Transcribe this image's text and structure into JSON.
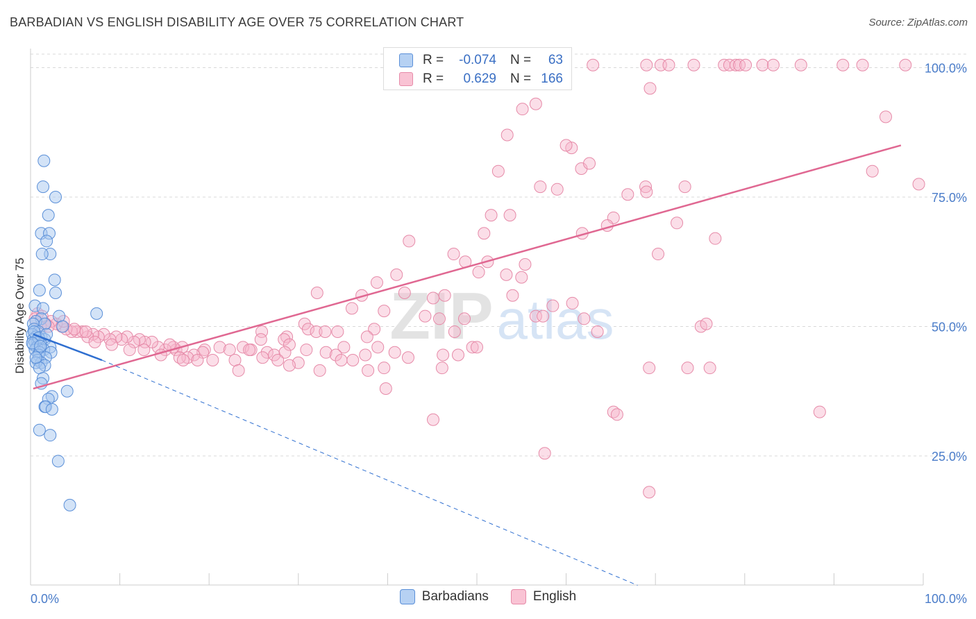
{
  "header": {
    "title": "BARBADIAN VS ENGLISH DISABILITY AGE OVER 75 CORRELATION CHART",
    "source": "Source: ZipAtlas.com"
  },
  "legend_top": {
    "rows": [
      {
        "r_label": "R =",
        "r_value": "-0.074",
        "n_label": "N =",
        "n_value": "63"
      },
      {
        "r_label": "R =",
        "r_value": "0.629",
        "n_label": "N =",
        "n_value": "166"
      }
    ]
  },
  "legend_bottom": [
    "Barbadians",
    "English"
  ],
  "watermark": {
    "zip": "ZIP",
    "atlas": "atlas"
  },
  "colors": {
    "barbadian_fill": "#a8c8f0",
    "barbadian_stroke": "#5a8fd8",
    "barbadian_line": "#2f6fd0",
    "english_fill": "#f7b6cb",
    "english_stroke": "#e68aa8",
    "english_line": "#e06892",
    "grid": "#d8d8d8",
    "tick_text": "#4a7cc9"
  },
  "chart_data": {
    "type": "scatter",
    "title": "BARBADIAN VS ENGLISH DISABILITY AGE OVER 75 CORRELATION CHART",
    "xlabel": "",
    "ylabel": "Disability Age Over 75",
    "xlim": [
      0,
      100
    ],
    "ylim": [
      0,
      105
    ],
    "x_tick_labels": [
      "0.0%",
      "100.0%"
    ],
    "y_ticks": [
      25,
      50,
      75,
      100
    ],
    "y_tick_labels": [
      "25.0%",
      "50.0%",
      "75.0%",
      "100.0%"
    ],
    "grid": true,
    "legend_position": "bottom",
    "series": [
      {
        "name": "Barbadians",
        "R": -0.074,
        "N": 63,
        "trend": {
          "x0": 0.3,
          "y0": 48.5,
          "x1": 8.0,
          "y1": 43.5,
          "dash_x1": 68.0,
          "dash_y1": 0
        },
        "points": [
          [
            1.5,
            82
          ],
          [
            1.4,
            77
          ],
          [
            2.8,
            75
          ],
          [
            2.0,
            71.5
          ],
          [
            1.2,
            68
          ],
          [
            2.1,
            68
          ],
          [
            1.8,
            66.5
          ],
          [
            2.2,
            64
          ],
          [
            1.3,
            64
          ],
          [
            2.7,
            59
          ],
          [
            1.0,
            57
          ],
          [
            2.8,
            56.5
          ],
          [
            0.5,
            54
          ],
          [
            1.4,
            53.5
          ],
          [
            7.4,
            52.5
          ],
          [
            3.2,
            52
          ],
          [
            1.2,
            51.5
          ],
          [
            0.6,
            51
          ],
          [
            0.3,
            50.5
          ],
          [
            1.6,
            50.5
          ],
          [
            3.6,
            50
          ],
          [
            0.4,
            49.5
          ],
          [
            0.9,
            49
          ],
          [
            0.2,
            48.5
          ],
          [
            1.2,
            48
          ],
          [
            0.6,
            48
          ],
          [
            0.3,
            47.5
          ],
          [
            1.6,
            47.5
          ],
          [
            0.5,
            47
          ],
          [
            0.8,
            47
          ],
          [
            0.3,
            46.5
          ],
          [
            1.2,
            46.5
          ],
          [
            0.7,
            46
          ],
          [
            2.2,
            46
          ],
          [
            0.5,
            45.5
          ],
          [
            1.5,
            45.5
          ],
          [
            1.0,
            45
          ],
          [
            2.3,
            45
          ],
          [
            0.9,
            44.5
          ],
          [
            1.7,
            44
          ],
          [
            0.8,
            43.5
          ],
          [
            1.2,
            43
          ],
          [
            0.6,
            43
          ],
          [
            1.6,
            42.5
          ],
          [
            1.0,
            42
          ],
          [
            1.4,
            40
          ],
          [
            1.2,
            39
          ],
          [
            4.1,
            37.5
          ],
          [
            2.4,
            36.5
          ],
          [
            2.0,
            36
          ],
          [
            1.6,
            34.5
          ],
          [
            1.7,
            34.5
          ],
          [
            2.4,
            34
          ],
          [
            1.0,
            30
          ],
          [
            2.2,
            29
          ],
          [
            3.1,
            24
          ],
          [
            4.4,
            15.5
          ],
          [
            0.4,
            49
          ],
          [
            0.9,
            47.8
          ],
          [
            0.2,
            46.8
          ],
          [
            1.8,
            48.5
          ],
          [
            0.6,
            44
          ],
          [
            1.1,
            46.2
          ]
        ]
      },
      {
        "name": "English",
        "R": 0.629,
        "N": 166,
        "trend": {
          "x0": 0.3,
          "y0": 38,
          "x1": 97.5,
          "y1": 85
        },
        "points": [
          [
            63.0,
            100.5
          ],
          [
            69.0,
            100.5
          ],
          [
            70.6,
            100.5
          ],
          [
            71.5,
            100.5
          ],
          [
            74.3,
            100.5
          ],
          [
            77.7,
            100.5
          ],
          [
            78.3,
            100.5
          ],
          [
            79.0,
            100.5
          ],
          [
            79.4,
            100.5
          ],
          [
            80.1,
            100.5
          ],
          [
            82.0,
            100.5
          ],
          [
            83.2,
            100.5
          ],
          [
            86.3,
            100.5
          ],
          [
            91.0,
            100.5
          ],
          [
            93.2,
            100.5
          ],
          [
            98.0,
            100.5
          ],
          [
            69.4,
            96
          ],
          [
            55.1,
            92
          ],
          [
            56.6,
            93
          ],
          [
            95.8,
            90.5
          ],
          [
            53.4,
            87
          ],
          [
            60.6,
            84.5
          ],
          [
            60.0,
            85
          ],
          [
            61.7,
            80.5
          ],
          [
            62.6,
            81.5
          ],
          [
            52.4,
            80
          ],
          [
            94.3,
            80
          ],
          [
            99.5,
            77.5
          ],
          [
            57.1,
            77
          ],
          [
            59.0,
            76.5
          ],
          [
            66.9,
            75.5
          ],
          [
            68.9,
            77
          ],
          [
            69.0,
            76
          ],
          [
            73.3,
            77
          ],
          [
            51.6,
            71.5
          ],
          [
            53.7,
            71.5
          ],
          [
            65.3,
            71
          ],
          [
            64.6,
            69.5
          ],
          [
            72.4,
            70
          ],
          [
            50.8,
            68
          ],
          [
            61.8,
            68
          ],
          [
            76.7,
            67
          ],
          [
            42.4,
            66.5
          ],
          [
            47.4,
            64
          ],
          [
            70.3,
            64
          ],
          [
            48.7,
            62.5
          ],
          [
            51.2,
            62.5
          ],
          [
            50.2,
            60.5
          ],
          [
            53.3,
            60
          ],
          [
            55.4,
            62
          ],
          [
            55.0,
            59.5
          ],
          [
            41.0,
            60
          ],
          [
            38.8,
            58.5
          ],
          [
            41.9,
            56.5
          ],
          [
            32.1,
            56.5
          ],
          [
            37.1,
            56
          ],
          [
            46.4,
            56
          ],
          [
            45.1,
            55.5
          ],
          [
            54.0,
            56
          ],
          [
            58.5,
            54
          ],
          [
            60.7,
            54.5
          ],
          [
            36.0,
            53.5
          ],
          [
            39.6,
            53
          ],
          [
            45.8,
            51.5
          ],
          [
            44.2,
            52
          ],
          [
            48.6,
            51.5
          ],
          [
            56.6,
            52
          ],
          [
            62.0,
            51.5
          ],
          [
            57.4,
            52
          ],
          [
            75.1,
            50
          ],
          [
            75.7,
            50.5
          ],
          [
            30.7,
            50.5
          ],
          [
            38.5,
            49.5
          ],
          [
            47.5,
            49
          ],
          [
            37.7,
            48
          ],
          [
            63.5,
            49
          ],
          [
            31.1,
            49.5
          ],
          [
            32.0,
            49
          ],
          [
            33.0,
            49
          ],
          [
            25.9,
            49
          ],
          [
            34.4,
            49
          ],
          [
            28.7,
            48
          ],
          [
            28.4,
            47.5
          ],
          [
            25.8,
            47.5
          ],
          [
            29.0,
            46.5
          ],
          [
            35.1,
            46
          ],
          [
            38.9,
            46
          ],
          [
            49.5,
            46
          ],
          [
            50.0,
            46
          ],
          [
            19.5,
            45.5
          ],
          [
            21.2,
            46
          ],
          [
            22.3,
            45.5
          ],
          [
            23.8,
            46
          ],
          [
            19.3,
            45
          ],
          [
            24.7,
            45.5
          ],
          [
            26.5,
            45
          ],
          [
            27.3,
            44.5
          ],
          [
            28.5,
            45
          ],
          [
            30.9,
            45.5
          ],
          [
            26.0,
            44
          ],
          [
            27.7,
            43.5
          ],
          [
            33.1,
            45
          ],
          [
            34.2,
            44.5
          ],
          [
            34.8,
            43.5
          ],
          [
            37.5,
            44.5
          ],
          [
            40.8,
            45
          ],
          [
            42.3,
            44
          ],
          [
            46.2,
            44.5
          ],
          [
            18.3,
            44.5
          ],
          [
            17.6,
            44
          ],
          [
            16.3,
            45.5
          ],
          [
            17.0,
            46
          ],
          [
            16.0,
            46
          ],
          [
            15.1,
            45.5
          ],
          [
            14.3,
            46
          ],
          [
            13.6,
            47
          ],
          [
            12.8,
            47
          ],
          [
            12.2,
            47.5
          ],
          [
            11.6,
            47
          ],
          [
            10.8,
            48
          ],
          [
            10.2,
            47.5
          ],
          [
            9.6,
            48
          ],
          [
            8.9,
            47.5
          ],
          [
            8.2,
            48.5
          ],
          [
            7.6,
            48
          ],
          [
            7.0,
            48.5
          ],
          [
            6.4,
            48
          ],
          [
            5.8,
            49
          ],
          [
            5.2,
            49
          ],
          [
            4.6,
            49
          ],
          [
            4.0,
            49.5
          ],
          [
            3.5,
            50
          ],
          [
            2.9,
            50.5
          ],
          [
            2.3,
            51
          ],
          [
            1.7,
            50.5
          ],
          [
            1.1,
            50
          ],
          [
            0.8,
            52.5
          ],
          [
            0.5,
            51.5
          ],
          [
            1.3,
            52
          ],
          [
            2.0,
            50
          ],
          [
            3.7,
            51
          ],
          [
            4.9,
            49.5
          ],
          [
            6.2,
            49
          ],
          [
            7.2,
            47
          ],
          [
            9.1,
            46.5
          ],
          [
            11.1,
            45.5
          ],
          [
            12.7,
            45.5
          ],
          [
            14.6,
            44.5
          ],
          [
            16.7,
            44
          ],
          [
            17.1,
            43.5
          ],
          [
            18.7,
            43.5
          ],
          [
            20.4,
            43.5
          ],
          [
            22.9,
            43.5
          ],
          [
            30.0,
            43
          ],
          [
            36.1,
            43.5
          ],
          [
            39.6,
            42
          ],
          [
            73.6,
            42
          ],
          [
            69.3,
            42
          ],
          [
            76.1,
            42
          ],
          [
            47.9,
            44.5
          ],
          [
            32.4,
            41.5
          ],
          [
            37.8,
            41.5
          ],
          [
            29.0,
            42.5
          ],
          [
            23.3,
            41.5
          ],
          [
            39.8,
            38
          ],
          [
            46.1,
            42
          ],
          [
            24.5,
            45.5
          ],
          [
            15.6,
            46.5
          ],
          [
            88.4,
            33.5
          ],
          [
            65.3,
            33.5
          ],
          [
            65.7,
            33
          ],
          [
            45.1,
            32
          ],
          [
            57.6,
            25.5
          ],
          [
            69.3,
            18
          ]
        ]
      }
    ]
  }
}
